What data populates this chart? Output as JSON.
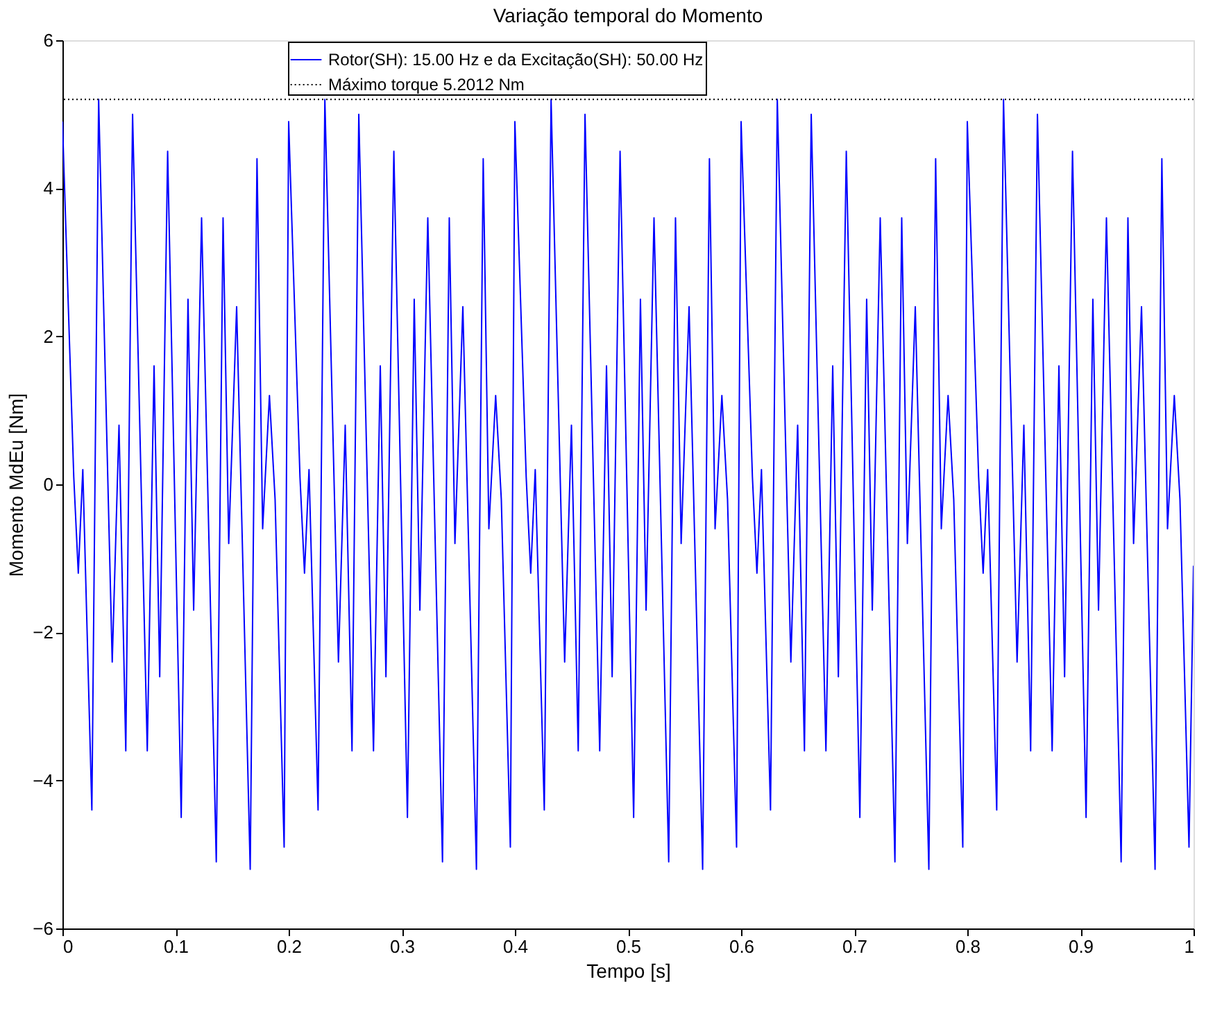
{
  "chart_data": {
    "type": "line",
    "title": "Variação temporal do Momento",
    "xlabel": "Tempo [s]",
    "ylabel": "Momento MdEu [Nm]",
    "x": [
      0,
      0.01,
      0.014,
      0.018,
      0.026,
      0.032,
      0.044,
      0.05,
      0.056,
      0.062,
      0.075,
      0.081,
      0.086,
      0.093,
      0.105,
      0.111,
      0.116,
      0.123,
      0.136,
      0.142,
      0.147,
      0.154,
      0.166,
      0.172,
      0.177,
      0.183,
      0.188,
      0.196,
      0.2,
      0.21,
      0.214,
      0.218,
      0.226,
      0.232,
      0.244,
      0.25,
      0.256,
      0.262,
      0.275,
      0.281,
      0.286,
      0.293,
      0.305,
      0.311,
      0.316,
      0.323,
      0.336,
      0.342,
      0.347,
      0.354,
      0.366,
      0.372,
      0.377,
      0.383,
      0.388,
      0.396,
      0.4,
      0.41,
      0.414,
      0.418,
      0.426,
      0.432,
      0.444,
      0.45,
      0.456,
      0.462,
      0.475,
      0.481,
      0.486,
      0.493,
      0.505,
      0.511,
      0.516,
      0.523,
      0.536,
      0.542,
      0.547,
      0.554,
      0.566,
      0.572,
      0.577,
      0.583,
      0.588,
      0.596,
      0.6,
      0.61,
      0.614,
      0.618,
      0.626,
      0.632,
      0.644,
      0.65,
      0.656,
      0.662,
      0.675,
      0.681,
      0.686,
      0.693,
      0.705,
      0.711,
      0.716,
      0.723,
      0.736,
      0.742,
      0.747,
      0.754,
      0.766,
      0.772,
      0.777,
      0.783,
      0.788,
      0.796,
      0.8,
      0.81,
      0.814,
      0.818,
      0.826,
      0.832,
      0.844,
      0.85,
      0.856,
      0.862,
      0.875,
      0.881,
      0.886,
      0.893,
      0.905,
      0.911,
      0.916,
      0.923,
      0.936,
      0.942,
      0.947,
      0.954,
      0.966,
      0.972,
      0.977,
      0.983,
      0.988,
      0.996,
      1.0
    ],
    "series": [
      {
        "name": "Rotor(SH): 15.00 Hz e da Excitação(SH): 50.00 Hz",
        "color": "#0000ff",
        "values": [
          4.9,
          0.1,
          -1.2,
          0.2,
          -4.4,
          5.2,
          -2.4,
          0.8,
          -3.6,
          5.0,
          -3.6,
          1.6,
          -2.6,
          4.5,
          -4.5,
          2.5,
          -1.7,
          3.6,
          -5.1,
          3.6,
          -0.8,
          2.4,
          -5.2,
          4.4,
          -0.6,
          1.2,
          -0.2,
          -4.9,
          4.9,
          0.1,
          -1.2,
          0.2,
          -4.4,
          5.2,
          -2.4,
          0.8,
          -3.6,
          5.0,
          -3.6,
          1.6,
          -2.6,
          4.5,
          -4.5,
          2.5,
          -1.7,
          3.6,
          -5.1,
          3.6,
          -0.8,
          2.4,
          -5.2,
          4.4,
          -0.6,
          1.2,
          -0.2,
          -4.9,
          4.9,
          0.1,
          -1.2,
          0.2,
          -4.4,
          5.2,
          -2.4,
          0.8,
          -3.6,
          5.0,
          -3.6,
          1.6,
          -2.6,
          4.5,
          -4.5,
          2.5,
          -1.7,
          3.6,
          -5.1,
          3.6,
          -0.8,
          2.4,
          -5.2,
          4.4,
          -0.6,
          1.2,
          -0.2,
          -4.9,
          4.9,
          0.1,
          -1.2,
          0.2,
          -4.4,
          5.2,
          -2.4,
          0.8,
          -3.6,
          5.0,
          -3.6,
          1.6,
          -2.6,
          4.5,
          -4.5,
          2.5,
          -1.7,
          3.6,
          -5.1,
          3.6,
          -0.8,
          2.4,
          -5.2,
          4.4,
          -0.6,
          1.2,
          -0.2,
          -4.9,
          4.9,
          0.1,
          -1.2,
          0.2,
          -4.4,
          5.2,
          -2.4,
          0.8,
          -3.6,
          5.0,
          -3.6,
          1.6,
          -2.6,
          4.5,
          -4.5,
          2.5,
          -1.7,
          3.6,
          -5.1,
          3.6,
          -0.8,
          2.4,
          -5.2,
          4.4,
          -0.6,
          1.2,
          -0.2,
          -4.9,
          -1.1
        ]
      }
    ],
    "ref_lines": [
      {
        "axis": "y",
        "value": 5.2012,
        "label": "Máximo torque 5.2012 Nm",
        "color": "#000000",
        "line_style": "dotted"
      }
    ],
    "xlim": [
      0,
      1
    ],
    "ylim": [
      -6,
      6
    ],
    "xticks": [
      0,
      0.1,
      0.2,
      0.3,
      0.4,
      0.5,
      0.6,
      0.7,
      0.8,
      0.9,
      1
    ],
    "yticks": [
      -6,
      -4,
      -2,
      0,
      2,
      4,
      6
    ],
    "grid": false,
    "legend": "top",
    "marker": "none",
    "line_style": "solid"
  }
}
